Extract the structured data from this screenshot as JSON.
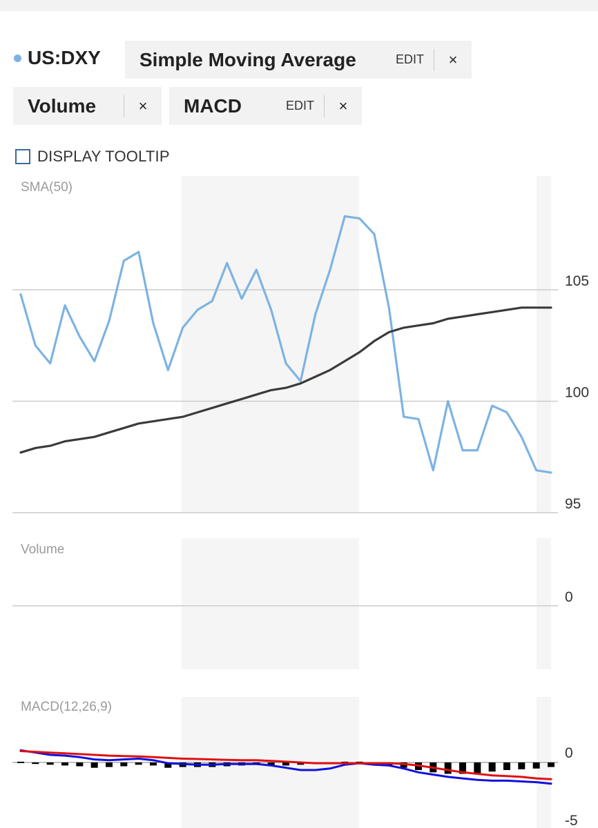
{
  "symbol": {
    "label": "US:DXY",
    "dot_color": "#7db3e3"
  },
  "indicators": [
    {
      "name": "Simple Moving Average",
      "edit_label": "EDIT",
      "close_label": "×"
    },
    {
      "name": "Volume",
      "close_label": "×"
    },
    {
      "name": "MACD",
      "edit_label": "EDIT",
      "close_label": "×"
    }
  ],
  "tooltip": {
    "label": "DISPLAY TOOLTIP",
    "checked": false
  },
  "colors": {
    "price": "#7db3e3",
    "sma": "#3a3a3a",
    "macd": "#1010dd",
    "signal": "#e01010",
    "histogram": "#000000",
    "shade": "#f5f5f5",
    "grid": "#cccccc"
  },
  "chart_data": [
    {
      "type": "line",
      "panel": "price",
      "label": "SMA(50)",
      "y_ticks": [
        105,
        100,
        95
      ],
      "ylim": [
        95,
        110
      ],
      "grid": true,
      "series": [
        {
          "name": "US:DXY",
          "values": [
            104.8,
            102.5,
            101.7,
            104.3,
            102.9,
            101.8,
            103.6,
            106.3,
            106.7,
            103.5,
            101.4,
            103.3,
            104.1,
            104.5,
            106.2,
            104.6,
            105.9,
            104.1,
            101.7,
            100.9,
            103.9,
            105.9,
            108.3,
            108.2,
            107.5,
            104.2,
            99.3,
            99.2,
            96.9,
            100.0,
            97.8,
            97.8,
            99.8,
            99.5,
            98.4,
            96.9,
            96.8
          ]
        },
        {
          "name": "SMA(50)",
          "values": [
            97.7,
            97.9,
            98.0,
            98.2,
            98.3,
            98.4,
            98.6,
            98.8,
            99.0,
            99.1,
            99.2,
            99.3,
            99.5,
            99.7,
            99.9,
            100.1,
            100.3,
            100.5,
            100.6,
            100.8,
            101.1,
            101.4,
            101.8,
            102.2,
            102.7,
            103.1,
            103.3,
            103.4,
            103.5,
            103.7,
            103.8,
            103.9,
            104.0,
            104.1,
            104.2,
            104.2,
            104.2
          ]
        }
      ]
    },
    {
      "type": "bar",
      "panel": "volume",
      "label": "Volume",
      "y_ticks": [
        0
      ],
      "values": []
    },
    {
      "type": "line",
      "panel": "macd",
      "label": "MACD(12,26,9)",
      "y_ticks": [
        0,
        -5
      ],
      "ylim": [
        -5,
        3
      ],
      "series": [
        {
          "name": "MACD",
          "values": [
            1.6,
            1.3,
            1.0,
            0.9,
            0.7,
            0.4,
            0.3,
            0.4,
            0.5,
            0.3,
            -0.1,
            -0.2,
            -0.3,
            -0.3,
            -0.2,
            -0.2,
            -0.2,
            -0.4,
            -0.7,
            -1.0,
            -1.0,
            -0.8,
            -0.3,
            -0.1,
            -0.3,
            -0.4,
            -0.8,
            -1.3,
            -1.6,
            -1.9,
            -2.1,
            -2.3,
            -2.4,
            -2.4,
            -2.5,
            -2.6,
            -2.8
          ]
        },
        {
          "name": "Signal",
          "values": [
            1.5,
            1.4,
            1.3,
            1.2,
            1.1,
            1.0,
            0.9,
            0.85,
            0.8,
            0.7,
            0.6,
            0.5,
            0.45,
            0.4,
            0.35,
            0.3,
            0.3,
            0.2,
            0.1,
            0.0,
            -0.1,
            -0.1,
            -0.1,
            -0.1,
            -0.1,
            -0.1,
            -0.2,
            -0.4,
            -0.7,
            -1.0,
            -1.3,
            -1.5,
            -1.7,
            -1.8,
            -1.9,
            -2.1,
            -2.2
          ]
        },
        {
          "name": "Histogram",
          "type": "bar",
          "values": [
            0.1,
            -0.2,
            -0.3,
            -0.4,
            -0.5,
            -0.7,
            -0.6,
            -0.5,
            -0.3,
            -0.4,
            -0.7,
            -0.6,
            -0.6,
            -0.6,
            -0.5,
            -0.4,
            -0.3,
            -0.5,
            -0.4,
            -0.3,
            -0.2,
            0.0,
            0.1,
            0.1,
            -0.1,
            -0.4,
            -0.7,
            -1.0,
            -1.3,
            -1.5,
            -1.5,
            -1.4,
            -1.2,
            -1.0,
            -0.9,
            -0.8,
            -0.6
          ]
        }
      ]
    }
  ]
}
